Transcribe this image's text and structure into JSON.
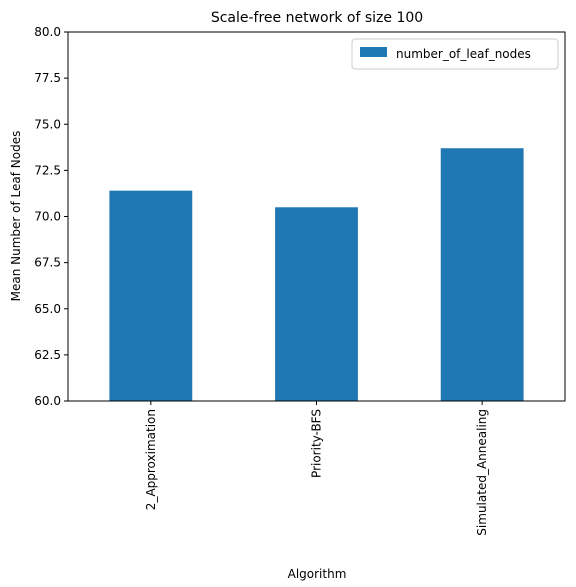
{
  "chart_data": {
    "type": "bar",
    "title": "Scale-free network of size 100",
    "xlabel": "Algorithm",
    "ylabel": "Mean Number of Leaf Nodes",
    "categories": [
      "2_Approximation",
      "Priority-BFS",
      "Simulated_Annealing"
    ],
    "series": [
      {
        "name": "number_of_leaf_nodes",
        "values": [
          71.4,
          70.5,
          73.7
        ],
        "color": "#1f77b4"
      }
    ],
    "ylim": [
      60,
      80
    ],
    "yticks": [
      60.0,
      62.5,
      65.0,
      67.5,
      70.0,
      72.5,
      75.0,
      77.5,
      80.0
    ],
    "ytick_labels": [
      "60.0",
      "62.5",
      "65.0",
      "67.5",
      "70.0",
      "72.5",
      "75.0",
      "77.5",
      "80.0"
    ],
    "grid": false,
    "legend": "top-right"
  }
}
